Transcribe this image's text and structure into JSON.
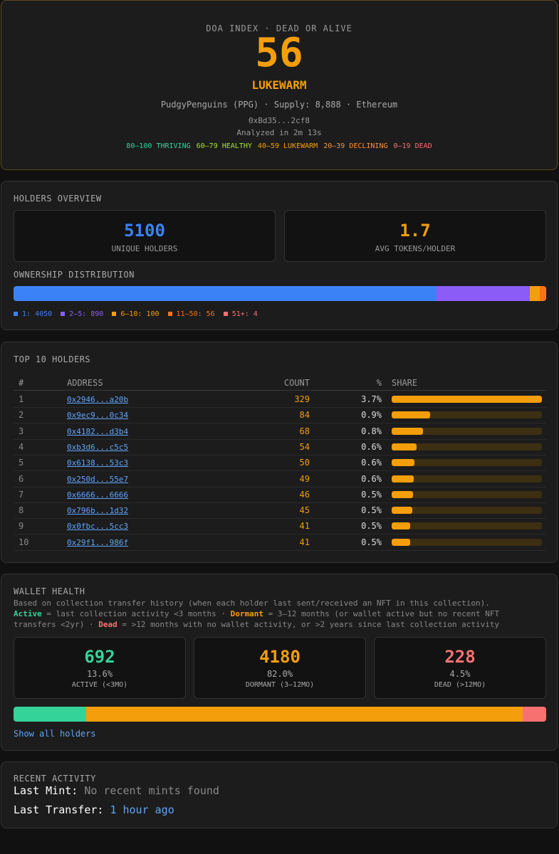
{
  "header": {
    "label": "DOA INDEX · DEAD OR ALIVE",
    "score": 56,
    "status": "LUKEWARM",
    "status_color": "#f59e0b",
    "collection": "PudgyPenguins (PPG) · Supply: 8,888 · Ethereum",
    "address": "0xBd35...2cf8",
    "analyzed": "Analyzed in 2m 13s",
    "legend": [
      {
        "label": "80–100 THRIVING",
        "color": "#34d399"
      },
      {
        "label": "60–79 HEALTHY",
        "color": "#a3e635"
      },
      {
        "label": "40–59 LUKEWARM",
        "color": "#f59e0b"
      },
      {
        "label": "20–39 DECLINING",
        "color": "#fb923c"
      },
      {
        "label": "0–19 DEAD",
        "color": "#f87171"
      }
    ]
  },
  "holders": {
    "title": "HOLDERS OVERVIEW",
    "stats": [
      {
        "value": 5100,
        "label": "UNIQUE HOLDERS",
        "color": "#3b82f6"
      },
      {
        "value": 1.7,
        "label": "AVG TOKENS/HOLDER",
        "color": "#f59e0b"
      }
    ],
    "distribution_title": "OWNERSHIP DISTRIBUTION",
    "distribution": [
      {
        "label": "1: 4050",
        "value": 4050,
        "color": "#3b82f6"
      },
      {
        "label": "2–5: 890",
        "value": 890,
        "color": "#8b5cf6"
      },
      {
        "label": "6–10: 100",
        "value": 100,
        "color": "#f59e0b"
      },
      {
        "label": "11–50: 56",
        "value": 56,
        "color": "#f97316"
      },
      {
        "label": "51+: 4",
        "value": 4,
        "color": "#f87171"
      }
    ]
  },
  "top_holders": {
    "title": "TOP 10 HOLDERS",
    "columns": [
      "#",
      "ADDRESS",
      "COUNT",
      "%",
      "SHARE"
    ],
    "rows": [
      {
        "rank": 1,
        "address": "0x2946...a20b",
        "count": 329,
        "percent": "3.7%"
      },
      {
        "rank": 2,
        "address": "0x9ec9...0c34",
        "count": 84,
        "percent": "0.9%"
      },
      {
        "rank": 3,
        "address": "0x4182...d3b4",
        "count": 68,
        "percent": "0.8%"
      },
      {
        "rank": 4,
        "address": "0xb3d6...c5c5",
        "count": 54,
        "percent": "0.6%"
      },
      {
        "rank": 5,
        "address": "0x6138...53c3",
        "count": 50,
        "percent": "0.6%"
      },
      {
        "rank": 6,
        "address": "0x250d...55e7",
        "count": 49,
        "percent": "0.6%"
      },
      {
        "rank": 7,
        "address": "0x6666...6666",
        "count": 46,
        "percent": "0.5%"
      },
      {
        "rank": 8,
        "address": "0x796b...1d32",
        "count": 45,
        "percent": "0.5%"
      },
      {
        "rank": 9,
        "address": "0x0fbc...5cc3",
        "count": 41,
        "percent": "0.5%"
      },
      {
        "rank": 10,
        "address": "0x29f1...986f",
        "count": 41,
        "percent": "0.5%"
      }
    ]
  },
  "wallet_health": {
    "title": "WALLET HEALTH",
    "description": "Based on collection transfer history (when each holder last sent/received an NFT in this collection).",
    "definitions": [
      {
        "text": "Active",
        "color": "#34d399"
      },
      {
        "text": " = last collection activity <3 months · "
      },
      {
        "text": "Dormant",
        "color": "#f59e0b"
      },
      {
        "text": " = 3–12 months (or wallet active but no recent NFT transfers <2yr) · "
      },
      {
        "text": "Dead",
        "color": "#f87171"
      },
      {
        "text": " = >12 months with no wallet activity, or >2 years since last collection activity"
      }
    ],
    "stats": [
      {
        "value": 692,
        "percent": "13.6%",
        "label": "ACTIVE (<3MO)",
        "color": "#34d399"
      },
      {
        "value": 4180,
        "percent": "82.0%",
        "label": "DORMANT (3–12MO)",
        "color": "#f59e0b"
      },
      {
        "value": 228,
        "percent": "4.5%",
        "label": "DEAD (>12MO)",
        "color": "#f87171"
      }
    ],
    "link": "Show all holders"
  },
  "recent_activity": {
    "title": "RECENT ACTIVITY",
    "items": [
      {
        "label": "Last Mint:",
        "value": "No recent mints found",
        "color": "#888888"
      },
      {
        "label": "Last Transfer:",
        "value": "1 hour ago",
        "color": "#60a5fa"
      }
    ]
  }
}
